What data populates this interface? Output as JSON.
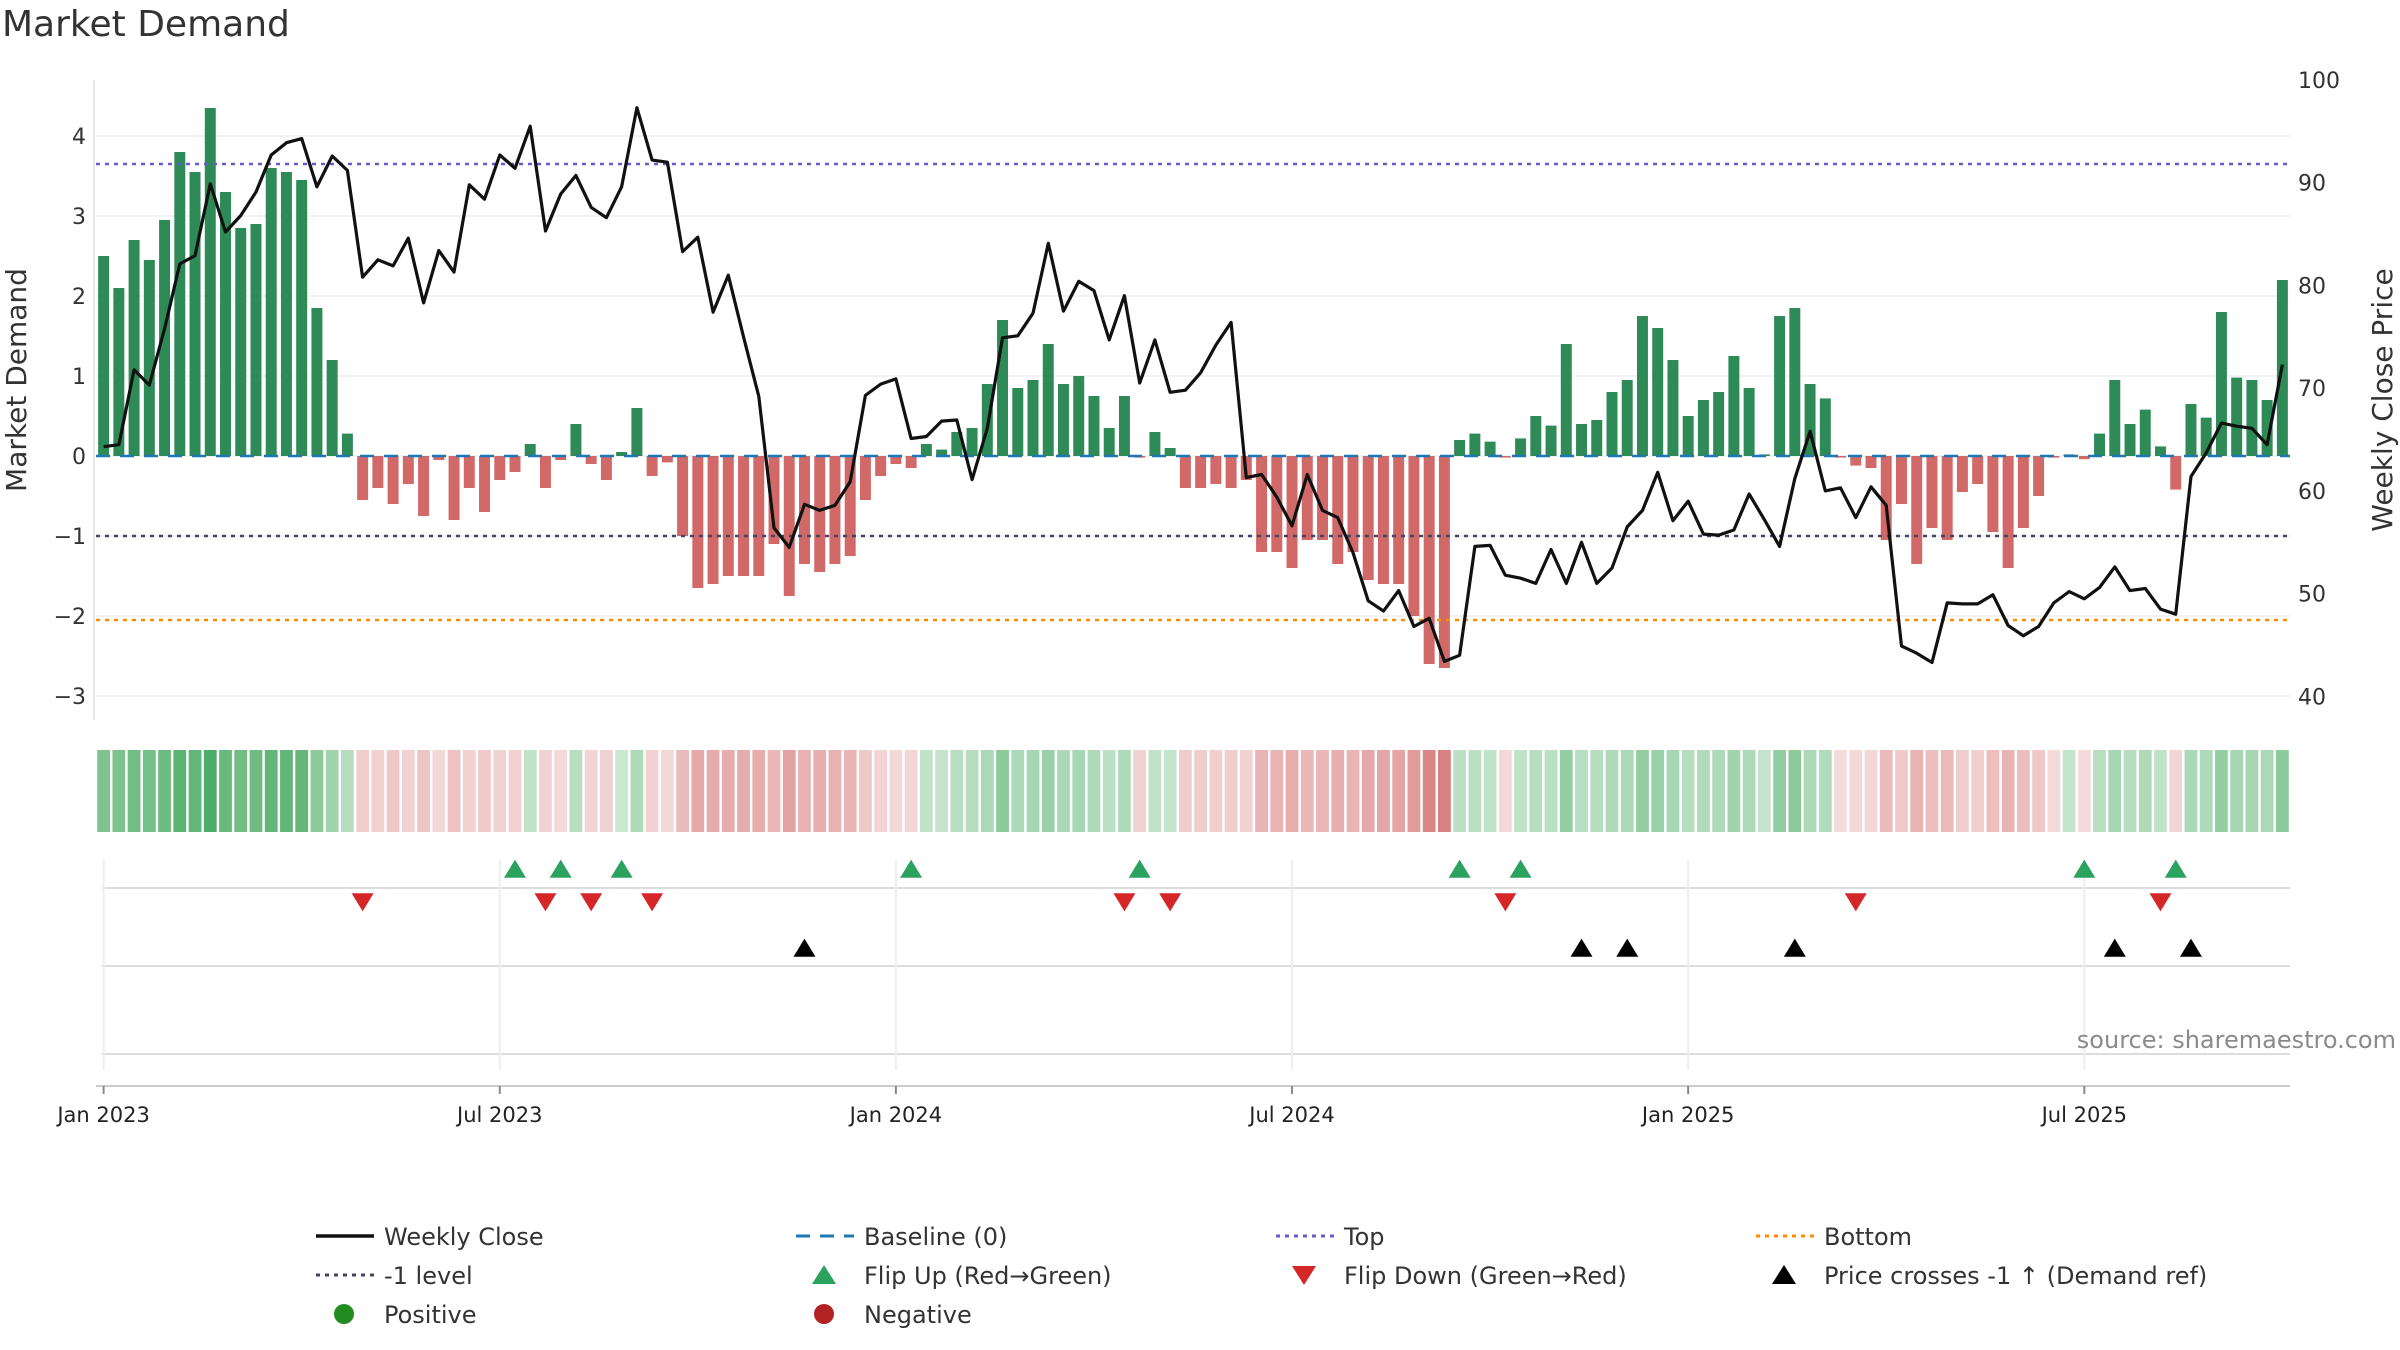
{
  "title": "Market Demand",
  "source": "source: sharemaestro.com",
  "chart_data": {
    "type": "bar",
    "weeks_start": "2023-01-02",
    "left_axis": {
      "label": "Market Demand",
      "range": [
        -3.3,
        4.7
      ],
      "ticks": [
        -3,
        -2,
        -1,
        0,
        1,
        2,
        3,
        4
      ]
    },
    "right_axis": {
      "label": "Weekly Close Price",
      "range": [
        37.7,
        100
      ],
      "ticks": [
        40,
        50,
        60,
        70,
        80,
        90,
        100
      ]
    },
    "x_ticks": [
      "Jan 2023",
      "Jul 2023",
      "Jan 2024",
      "Jul 2024",
      "Jan 2025",
      "Jul 2025"
    ],
    "demand": [
      2.5,
      2.1,
      2.7,
      2.45,
      2.95,
      3.8,
      3.55,
      4.35,
      3.3,
      2.85,
      2.9,
      3.6,
      3.55,
      3.45,
      1.85,
      1.2,
      0.28,
      -0.55,
      -0.4,
      -0.6,
      -0.35,
      -0.75,
      -0.05,
      -0.8,
      -0.4,
      -0.7,
      -0.3,
      -0.2,
      0.15,
      -0.4,
      -0.05,
      0.4,
      -0.1,
      -0.3,
      0.05,
      0.6,
      -0.25,
      -0.08,
      -1.0,
      -1.65,
      -1.6,
      -1.5,
      -1.5,
      -1.5,
      -1.1,
      -1.75,
      -1.35,
      -1.45,
      -1.35,
      -1.25,
      -0.55,
      -0.25,
      -0.1,
      -0.15,
      0.15,
      0.08,
      0.3,
      0.35,
      0.9,
      1.7,
      0.85,
      0.95,
      1.4,
      0.9,
      1.0,
      0.75,
      0.35,
      0.75,
      -0.02,
      0.3,
      0.1,
      -0.4,
      -0.4,
      -0.35,
      -0.4,
      -0.3,
      -1.2,
      -1.2,
      -1.4,
      -1.05,
      -1.05,
      -1.35,
      -1.2,
      -1.55,
      -1.6,
      -1.6,
      -2.0,
      -2.6,
      -2.65,
      0.2,
      0.28,
      0.18,
      -0.02,
      0.22,
      0.5,
      0.38,
      1.4,
      0.4,
      0.45,
      0.8,
      0.95,
      1.75,
      1.6,
      1.2,
      0.5,
      0.7,
      0.8,
      1.25,
      0.85,
      0.02,
      1.75,
      1.85,
      0.9,
      0.72,
      -0.02,
      -0.12,
      -0.15,
      -1.05,
      -0.6,
      -1.35,
      -0.9,
      -1.05,
      -0.45,
      -0.35,
      -0.95,
      -1.4,
      -0.9,
      -0.5,
      -0.02,
      0.02,
      -0.04,
      0.28,
      0.95,
      0.4,
      0.58,
      0.12,
      -0.42,
      0.65,
      0.48,
      1.8,
      0.98,
      0.95,
      0.7,
      2.2
    ],
    "close": [
      64.3,
      64.5,
      71.8,
      70.3,
      75.8,
      82.1,
      82.9,
      89.9,
      85.2,
      86.8,
      89.1,
      92.7,
      93.9,
      94.3,
      89.6,
      92.6,
      91.2,
      80.8,
      82.5,
      81.9,
      84.6,
      78.3,
      83.4,
      81.3,
      89.8,
      88.4,
      92.7,
      91.4,
      95.5,
      85.3,
      88.9,
      90.7,
      87.6,
      86.6,
      89.6,
      97.3,
      92.2,
      92.0,
      83.3,
      84.7,
      77.4,
      81.0,
      75.0,
      69.2,
      56.4,
      54.5,
      58.7,
      58.1,
      58.6,
      60.9,
      69.3,
      70.4,
      70.9,
      65.1,
      65.3,
      66.8,
      66.9,
      61.1,
      66.1,
      74.9,
      75.1,
      77.3,
      84.1,
      77.5,
      80.4,
      79.5,
      74.7,
      79.0,
      70.5,
      74.7,
      69.6,
      69.8,
      71.5,
      74.2,
      76.4,
      61.3,
      61.6,
      59.4,
      56.6,
      61.6,
      58.1,
      57.4,
      54.0,
      49.3,
      48.3,
      50.3,
      46.8,
      47.6,
      43.4,
      44.0,
      54.6,
      54.7,
      51.8,
      51.5,
      51.0,
      54.3,
      51.0,
      55.0,
      51.0,
      52.5,
      56.5,
      58.1,
      61.8,
      57.1,
      59.0,
      55.8,
      55.7,
      56.2,
      59.7,
      57.2,
      54.6,
      61.2,
      65.8,
      60.0,
      60.3,
      57.4,
      60.4,
      58.6,
      44.9,
      44.2,
      43.3,
      49.1,
      49.0,
      49.0,
      49.9,
      46.9,
      45.9,
      46.8,
      49.1,
      50.2,
      49.5,
      50.6,
      52.6,
      50.3,
      50.5,
      48.5,
      48.0,
      61.4,
      63.7,
      66.6,
      66.3,
      66.1,
      64.5,
      72.3
    ],
    "band_intensity": [
      0.62,
      0.62,
      0.68,
      0.66,
      0.7,
      0.78,
      0.75,
      0.85,
      0.72,
      0.68,
      0.69,
      0.75,
      0.75,
      0.74,
      0.55,
      0.45,
      0.35,
      0.28,
      0.26,
      0.3,
      0.26,
      0.32,
      0.22,
      0.34,
      0.26,
      0.3,
      0.25,
      0.25,
      0.3,
      0.26,
      0.22,
      0.34,
      0.24,
      0.25,
      0.25,
      0.38,
      0.25,
      0.22,
      0.38,
      0.48,
      0.47,
      0.46,
      0.46,
      0.46,
      0.4,
      0.52,
      0.43,
      0.45,
      0.43,
      0.42,
      0.3,
      0.24,
      0.22,
      0.23,
      0.3,
      0.28,
      0.34,
      0.35,
      0.4,
      0.55,
      0.4,
      0.42,
      0.48,
      0.4,
      0.42,
      0.38,
      0.32,
      0.38,
      0.25,
      0.3,
      0.28,
      0.28,
      0.28,
      0.27,
      0.28,
      0.26,
      0.42,
      0.42,
      0.45,
      0.4,
      0.4,
      0.44,
      0.42,
      0.48,
      0.5,
      0.5,
      0.56,
      0.68,
      0.7,
      0.32,
      0.33,
      0.3,
      0.22,
      0.3,
      0.35,
      0.33,
      0.5,
      0.34,
      0.35,
      0.38,
      0.4,
      0.5,
      0.48,
      0.42,
      0.35,
      0.37,
      0.38,
      0.45,
      0.38,
      0.28,
      0.52,
      0.55,
      0.4,
      0.37,
      0.2,
      0.22,
      0.23,
      0.38,
      0.3,
      0.42,
      0.36,
      0.38,
      0.28,
      0.27,
      0.36,
      0.42,
      0.36,
      0.3,
      0.2,
      0.28,
      0.2,
      0.34,
      0.42,
      0.35,
      0.38,
      0.3,
      0.24,
      0.4,
      0.38,
      0.5,
      0.42,
      0.42,
      0.4,
      0.55
    ],
    "top_level": 3.65,
    "minus_one_level": -1.0,
    "bottom_level": -2.05,
    "baseline": 0,
    "flip_up_weeks": [
      27,
      30,
      34,
      53,
      68,
      89,
      93,
      130,
      136
    ],
    "flip_down_weeks": [
      17,
      29,
      32,
      36,
      67,
      70,
      92,
      115,
      135
    ],
    "price_cross_weeks": [
      46,
      97,
      100,
      111,
      132,
      137
    ],
    "colors": {
      "positive": "#2e8b57",
      "negative": "#cd5c5c",
      "close_line": "#111111",
      "baseline": "#1f77b4",
      "top": "#6a5acd",
      "minus_one": "#444466",
      "bottom": "#ff8c00",
      "flip_up": "#2ca25f",
      "flip_down": "#d62728",
      "price_cross": "#000000",
      "band_green": "#2e9e4a",
      "band_red": "#c94c4c"
    },
    "legend": [
      {
        "label": "Weekly Close",
        "symbol": "line-solid",
        "color": "#111111"
      },
      {
        "label": "Baseline (0)",
        "symbol": "line-dashed",
        "color": "#1f77b4"
      },
      {
        "label": "Top",
        "symbol": "line-dotted",
        "color": "#6a5acd"
      },
      {
        "label": "Bottom",
        "symbol": "line-dotted",
        "color": "#ff8c00"
      },
      {
        "label": "-1 level",
        "symbol": "line-dotted",
        "color": "#444466"
      },
      {
        "label": "Flip Up (Red→Green)",
        "symbol": "triangle-up",
        "color": "#2ca25f"
      },
      {
        "label": "Flip Down (Green→Red)",
        "symbol": "triangle-down",
        "color": "#d62728"
      },
      {
        "label": "Price crosses -1 ↑ (Demand ref)",
        "symbol": "triangle-up",
        "color": "#000000"
      },
      {
        "label": "Positive",
        "symbol": "circle",
        "color": "#228b22"
      },
      {
        "label": "Negative",
        "symbol": "circle",
        "color": "#b22222"
      }
    ]
  }
}
